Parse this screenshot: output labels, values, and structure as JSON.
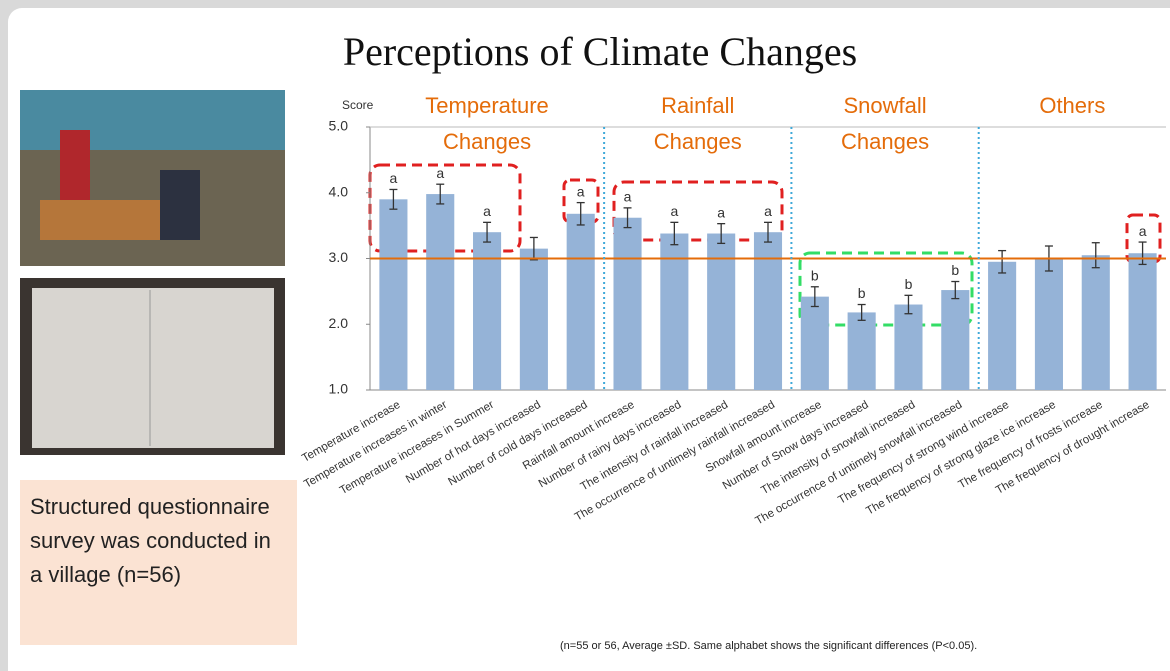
{
  "title": "Perceptions of Climate Changes",
  "note": "Structured questionnaire survey was conducted in a village (n=56)",
  "footnote": "(n=55 or 56, Average ±SD. Same alphabet shows the significant differences (P<0.05).",
  "chart_data": {
    "type": "bar",
    "y_label": "Score",
    "categories": [
      "Temperature increase",
      "Temperature increases in winter",
      "Temperature increases in Summer",
      "Number of hot days increased",
      "Number of cold days increased",
      "Rainfall amount increase",
      "Number of rainy days increased",
      "The intensity of rainfall increased",
      "The occurrence of untimely rainfall increased",
      "Snowfall amount increase",
      "Number of Snow days increased",
      "The intensity of snowfall increased",
      "The occurrence of untimely snowfall increased",
      "The frequency of strong wind increase",
      "The frequency of strong glaze ice increase",
      "The frequency of frosts increase",
      "The frequency of drought increase"
    ],
    "values": [
      3.9,
      3.98,
      3.4,
      3.15,
      3.68,
      3.62,
      3.38,
      3.38,
      3.4,
      2.42,
      2.18,
      2.3,
      2.52,
      2.95,
      3.0,
      3.05,
      3.08
    ],
    "errors": [
      0.15,
      0.15,
      0.15,
      0.17,
      0.17,
      0.15,
      0.17,
      0.15,
      0.15,
      0.15,
      0.12,
      0.14,
      0.13,
      0.17,
      0.19,
      0.19,
      0.17
    ],
    "letters": [
      "a",
      "a",
      "a",
      null,
      "a",
      "a",
      "a",
      "a",
      "a",
      "b",
      "b",
      "b",
      "b",
      null,
      null,
      null,
      "a"
    ],
    "color": "#95b3d7",
    "ylim": [
      1,
      5
    ],
    "yticks": [
      {
        "value": 1,
        "label": "1.0"
      },
      {
        "value": 2,
        "label": "2.0"
      },
      {
        "value": 3,
        "label": "3.0"
      },
      {
        "value": 4,
        "label": "4.0"
      },
      {
        "value": 5,
        "label": "5.0"
      }
    ],
    "reference_line": 3,
    "reference_color": "#e46c0a",
    "groups": [
      {
        "label": "Temperature Changes",
        "size": 5
      },
      {
        "label": "Rainfall Changes",
        "size": 4
      },
      {
        "label": "Snowfall Changes",
        "size": 4
      },
      {
        "label": "Others",
        "size": 4
      }
    ]
  }
}
